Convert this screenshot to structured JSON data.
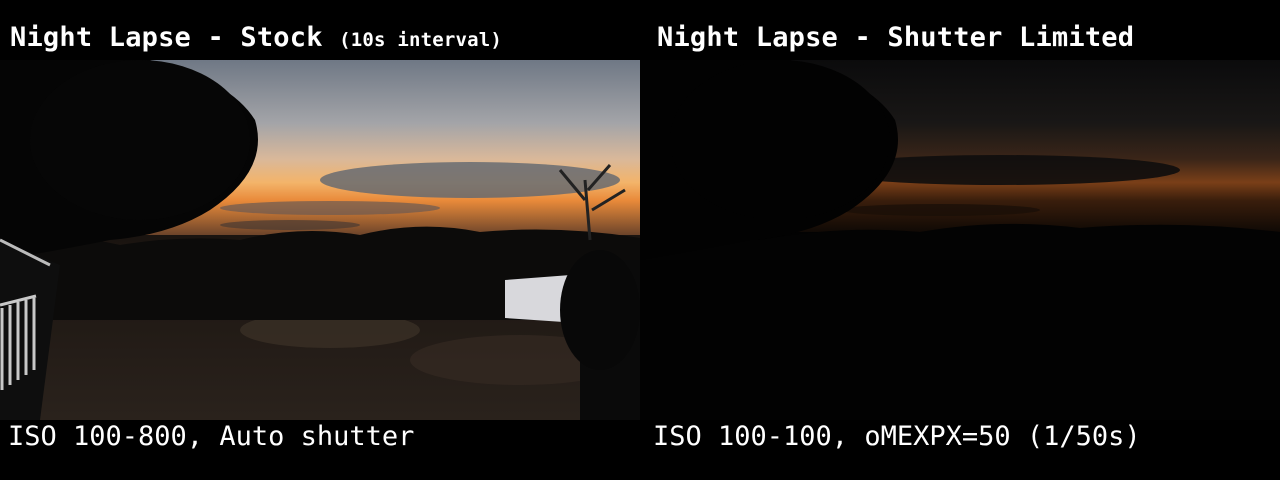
{
  "left_panel": {
    "title": "Night Lapse - Stock",
    "title_note": "(10s interval)",
    "caption": "ISO 100-800, Auto shutter",
    "photo_description_icon": "sunset-landscape-image"
  },
  "right_panel": {
    "title": "Night Lapse - Shutter Limited",
    "caption": "ISO 100-100, oMEXPX=50 (1/50s)",
    "photo_description_icon": "dark-sunset-landscape-image"
  },
  "colors": {
    "background": "#000000",
    "text": "#ffffff",
    "sky_glow": "#f6a24a",
    "sky_blue": "#7b8796"
  }
}
